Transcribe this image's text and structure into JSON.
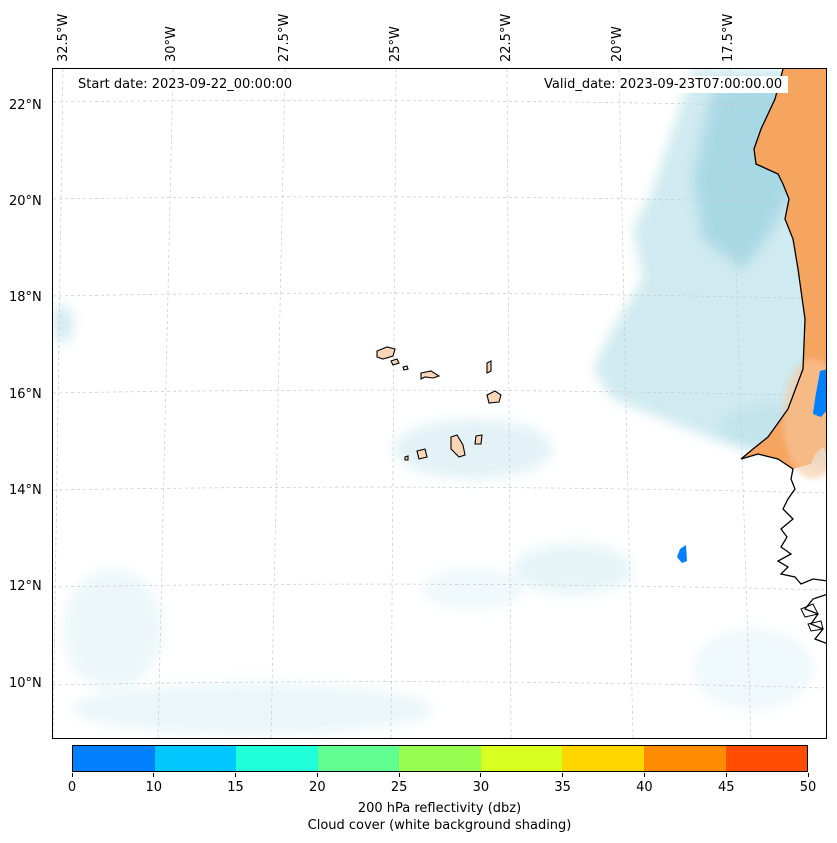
{
  "map": {
    "start_date": "Start date: 2023-09-22_00:00:00",
    "valid_date": "Valid_date: 2023-09-23T07:00:00.00",
    "lon_labels": [
      "32.5°W",
      "30°W",
      "27.5°W",
      "25°W",
      "22.5°W",
      "20°W",
      "17.5°W"
    ],
    "lat_labels": [
      "22°N",
      "20°N",
      "18°N",
      "16°N",
      "14°N",
      "12°N",
      "10°N"
    ],
    "land_fill": "#f5a560",
    "island_fill": "#f9d6b8",
    "cloud_color": "#a8d8e4",
    "reflectivity_color": "#0080ff"
  },
  "colorbar": {
    "colors": [
      "#0080ff",
      "#00c8ff",
      "#20ffd8",
      "#60ff90",
      "#98ff50",
      "#d8ff20",
      "#ffd700",
      "#ff8c00",
      "#ff4d00"
    ],
    "tick_labels": [
      "0",
      "10",
      "15",
      "20",
      "25",
      "30",
      "35",
      "40",
      "45",
      "50"
    ],
    "title_line1": "200 hPa reflectivity (dbz)",
    "title_line2": "Cloud cover (white background shading)"
  }
}
